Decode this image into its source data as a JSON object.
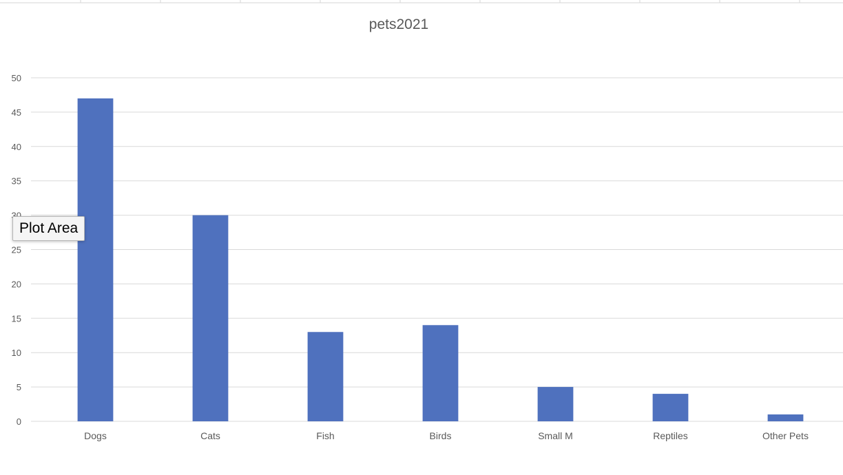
{
  "colors": {
    "bar": "#4f71be",
    "grid": "#d9d9d9",
    "text": "#595959"
  },
  "tooltip": {
    "text": "Plot Area"
  },
  "chart_data": {
    "type": "bar",
    "title": "pets2021",
    "categories": [
      "Dogs",
      "Cats",
      "Fish",
      "Birds",
      "Small M",
      "Reptiles",
      "Other Pets"
    ],
    "values": [
      47,
      30,
      13,
      14,
      5,
      4,
      1
    ],
    "ylim": [
      0,
      50
    ],
    "yticks": [
      0,
      5,
      10,
      15,
      20,
      25,
      30,
      35,
      40,
      45,
      50
    ],
    "xlabel": "",
    "ylabel": "",
    "grid": true,
    "legend": "none"
  }
}
